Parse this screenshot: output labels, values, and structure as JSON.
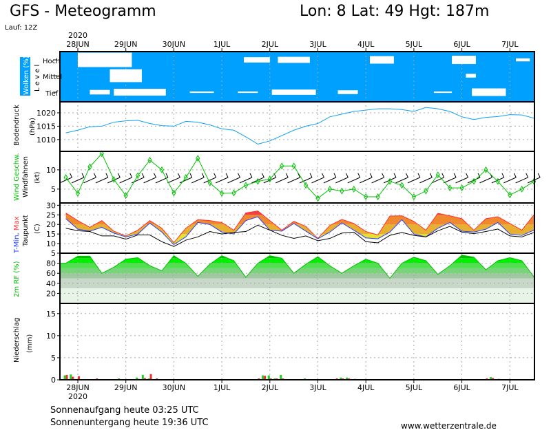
{
  "header": {
    "title": "GFS - Meteogramm",
    "location": "Lon: 8 Lat: 49 Hgt: 187m",
    "run": "Lauf: 12Z"
  },
  "footer": {
    "sunrise": "Sonnenaufgang heute 03:25 UTC",
    "sunset": "Sonnenuntergang heute 19:36 UTC",
    "website": "www.wetterzentrale.de"
  },
  "axis": {
    "year": "2020",
    "days": [
      {
        "label": "28JUN",
        "date": "2020-06-28"
      },
      {
        "label": "29JUN",
        "date": "2020-06-29"
      },
      {
        "label": "30JUN",
        "date": "2020-06-30"
      },
      {
        "label": "1JUL",
        "date": "2020-07-01"
      },
      {
        "label": "2JUL",
        "date": "2020-07-02"
      },
      {
        "label": "3JUL",
        "date": "2020-07-03"
      },
      {
        "label": "4JUL",
        "date": "2020-07-04"
      },
      {
        "label": "5JUL",
        "date": "2020-07-05"
      },
      {
        "label": "6JUL",
        "date": "2020-07-06"
      },
      {
        "label": "7JUL",
        "date": "2020-07-07"
      }
    ],
    "range": [
      "2020-06-27T15",
      "2020-07-07T12"
    ]
  },
  "colors": {
    "cloud_bg": "#00a0ff",
    "pressure": "#10a0f0",
    "wind": "#00c000",
    "tmin": "#2040ff",
    "tmax": "#ff3030",
    "dewpoint": "#000000",
    "rh": "#00c000",
    "precip_green": "#20d020",
    "precip_red": "#f03030"
  },
  "chart_data": [
    {
      "type": "area",
      "panel": "clouds",
      "ylabel": "Wolken (%)",
      "ylabel2": "L e v e l",
      "levels": [
        "Hoch",
        "Mittel",
        "Tief"
      ],
      "blobs": {
        "Hoch": [
          {
            "from": "2020-06-28T00",
            "to": "2020-06-29T03",
            "cover": 95
          },
          {
            "from": "2020-07-01T11",
            "to": "2020-07-02T00",
            "cover": 35
          },
          {
            "from": "2020-07-02T04",
            "to": "2020-07-02T20",
            "cover": 40
          },
          {
            "from": "2020-07-04T02",
            "to": "2020-07-04T14",
            "cover": 50
          },
          {
            "from": "2020-07-05T19",
            "to": "2020-07-06T07",
            "cover": 55
          },
          {
            "from": "2020-07-07T03",
            "to": "2020-07-07T10",
            "cover": 20
          }
        ],
        "Mittel": [
          {
            "from": "2020-06-28T16",
            "to": "2020-06-29T08",
            "cover": 85
          },
          {
            "from": "2020-07-06T02",
            "to": "2020-07-06T07",
            "cover": 25
          }
        ],
        "Tief": [
          {
            "from": "2020-06-28T06",
            "to": "2020-06-28T16",
            "cover": 30
          },
          {
            "from": "2020-06-28T18",
            "to": "2020-06-29T20",
            "cover": 45
          },
          {
            "from": "2020-06-30T08",
            "to": "2020-06-30T20",
            "cover": 10
          },
          {
            "from": "2020-07-01T08",
            "to": "2020-07-01T18",
            "cover": 10
          },
          {
            "from": "2020-07-02T01",
            "to": "2020-07-02T23",
            "cover": 35
          },
          {
            "from": "2020-07-03T10",
            "to": "2020-07-03T20",
            "cover": 25
          },
          {
            "from": "2020-07-05T10",
            "to": "2020-07-05T19",
            "cover": 10
          },
          {
            "from": "2020-07-06T05",
            "to": "2020-07-06T22",
            "cover": 50
          }
        ]
      }
    },
    {
      "type": "line",
      "panel": "pressure",
      "ylabel": "Bodendruck",
      "yunit": "(hPa)",
      "yticks": [
        1010,
        1015,
        1020
      ],
      "ylim": [
        1005.6,
        1024.1
      ],
      "grid": true,
      "x": [
        "2020-06-27T18",
        "2020-06-28T00",
        "2020-06-28T06",
        "2020-06-28T12",
        "2020-06-28T18",
        "2020-06-29T00",
        "2020-06-29T06",
        "2020-06-29T12",
        "2020-06-29T18",
        "2020-06-30T00",
        "2020-06-30T06",
        "2020-06-30T12",
        "2020-06-30T18",
        "2020-07-01T00",
        "2020-07-01T06",
        "2020-07-01T12",
        "2020-07-01T18",
        "2020-07-02T00",
        "2020-07-02T06",
        "2020-07-02T12",
        "2020-07-02T18",
        "2020-07-03T00",
        "2020-07-03T06",
        "2020-07-03T12",
        "2020-07-03T18",
        "2020-07-04T00",
        "2020-07-04T06",
        "2020-07-04T12",
        "2020-07-04T18",
        "2020-07-05T00",
        "2020-07-05T06",
        "2020-07-05T12",
        "2020-07-05T18",
        "2020-07-06T00",
        "2020-07-06T06",
        "2020-07-06T12",
        "2020-07-06T18",
        "2020-07-07T00",
        "2020-07-07T06",
        "2020-07-07T12"
      ],
      "values": [
        1012.5,
        1013.5,
        1014.8,
        1015.0,
        1016.5,
        1017.0,
        1017.2,
        1016.0,
        1015.2,
        1015.0,
        1016.8,
        1016.5,
        1015.5,
        1014.0,
        1013.5,
        1011.0,
        1008.3,
        1009.5,
        1011.5,
        1013.5,
        1015.0,
        1016.0,
        1018.5,
        1019.5,
        1020.5,
        1021.0,
        1021.5,
        1021.5,
        1021.2,
        1020.5,
        1022.0,
        1021.5,
        1020.5,
        1018.5,
        1017.5,
        1018.3,
        1018.6,
        1019.3,
        1019.2,
        1018.0
      ]
    },
    {
      "type": "line",
      "panel": "wind",
      "ylabel": "Wind Geschw.",
      "ylabel2": "Windfahnen",
      "yunit": "(kt)",
      "yticks": [
        5,
        10
      ],
      "ylim": [
        1.4,
        14.8
      ],
      "grid": true,
      "values": [
        8,
        3.9,
        10.8,
        14.2,
        7.5,
        3.3,
        8.5,
        12.5,
        10,
        4,
        8,
        13,
        6.6,
        3.9,
        4,
        6,
        7,
        7.6,
        11,
        11,
        6,
        2.6,
        5,
        4.5,
        5,
        3,
        3,
        7,
        6,
        3,
        4.5,
        8.7,
        5.3,
        5.3,
        7,
        10,
        7,
        3.5,
        5,
        7
      ]
    },
    {
      "type": "line",
      "panel": "temperature",
      "ylabel": "T-Min, Max",
      "ylabel2": "Taupunkt",
      "yunit": "(C)",
      "yticks": [
        5,
        10,
        15,
        20,
        25,
        30
      ],
      "ylim": [
        5,
        31.2
      ],
      "grid": true,
      "series": [
        {
          "name": "Max",
          "values": [
            26,
            22,
            18.5,
            22,
            16.5,
            14,
            17,
            22,
            18,
            10.5,
            18,
            22.5,
            22,
            21,
            17,
            26,
            27,
            22,
            17,
            21.6,
            19,
            12.7,
            19.5,
            22.6,
            20.5,
            16.3,
            14.5,
            24.4,
            24.5,
            21.6,
            17,
            25.8,
            24.5,
            23,
            17,
            23,
            24,
            20.5,
            17,
            25
          ]
        },
        {
          "name": "T-Min",
          "values": [
            23,
            17.5,
            16.5,
            18.5,
            15.5,
            13.5,
            15,
            20.7,
            16,
            9.5,
            13.5,
            21,
            20,
            16,
            15,
            22,
            24,
            17,
            16.5,
            20.5,
            16.5,
            12.5,
            16,
            20.8,
            17,
            13,
            12.5,
            16,
            22.5,
            15,
            13.5,
            18,
            21,
            16.5,
            16,
            17.5,
            21,
            15,
            14.3,
            17
          ]
        },
        {
          "name": "Taupunkt",
          "values": [
            18,
            16.7,
            16.3,
            14,
            14,
            12.3,
            14.5,
            14.5,
            11,
            8.5,
            11.8,
            13.5,
            16.3,
            15,
            15.8,
            16.3,
            19.6,
            17,
            14.3,
            12.7,
            14,
            11.5,
            12.7,
            15.5,
            16,
            11,
            10.4,
            14.3,
            15.8,
            14.3,
            13.5,
            16.7,
            19,
            16,
            15.2,
            16.3,
            17.6,
            14,
            13.5,
            15.8
          ]
        }
      ]
    },
    {
      "type": "area",
      "panel": "humidity",
      "ylabel": "2m RF (%)",
      "yticks": [
        20,
        40,
        60,
        80
      ],
      "ylim": [
        0,
        100
      ],
      "grid": true,
      "values": [
        80,
        94,
        94,
        60,
        72,
        88,
        91,
        75,
        65,
        95,
        80,
        54,
        78,
        95,
        85,
        52,
        80,
        95,
        90,
        60,
        78,
        93,
        75,
        60,
        75,
        88,
        80,
        50,
        80,
        92,
        85,
        58,
        75,
        96,
        92,
        67,
        85,
        91,
        85,
        53
      ]
    },
    {
      "type": "bar",
      "panel": "precipitation",
      "ylabel": "Niederschlag",
      "yunit": "(mm)",
      "yticks": [
        0,
        5,
        10,
        15
      ],
      "ylim": [
        0,
        17.3
      ],
      "grid": true,
      "bars": [
        {
          "x": "2020-06-27T18",
          "green": 1.0,
          "red": 1.1
        },
        {
          "x": "2020-06-27T21",
          "green": 1.2,
          "red": 0.7
        },
        {
          "x": "2020-06-28T00",
          "green": 0.1,
          "red": 0.8
        },
        {
          "x": "2020-06-28T09",
          "green": 0.0,
          "red": 0.3
        },
        {
          "x": "2020-06-28T21",
          "green": 0.3,
          "red": 0.1
        },
        {
          "x": "2020-06-29T06",
          "green": 0.5,
          "red": 0.2
        },
        {
          "x": "2020-06-29T09",
          "green": 1.1,
          "red": 0.4
        },
        {
          "x": "2020-06-29T12",
          "green": 0.3,
          "red": 1.3
        },
        {
          "x": "2020-06-29T15",
          "green": 0.0,
          "red": 0.3
        },
        {
          "x": "2020-07-01T18",
          "green": 0.0,
          "red": 0.3
        },
        {
          "x": "2020-07-01T21",
          "green": 1.0,
          "red": 0.9
        },
        {
          "x": "2020-07-02T00",
          "green": 1.0,
          "red": 0.3
        },
        {
          "x": "2020-07-02T03",
          "green": 0.3,
          "red": 0.3
        },
        {
          "x": "2020-07-02T06",
          "green": 1.1,
          "red": 0.3
        },
        {
          "x": "2020-07-02T09",
          "green": 0.0,
          "red": 0.1
        },
        {
          "x": "2020-07-02T18",
          "green": 0.3,
          "red": 0.1
        },
        {
          "x": "2020-07-03T09",
          "green": 0.0,
          "red": 0.3
        },
        {
          "x": "2020-07-03T12",
          "green": 0.5,
          "red": 0.3
        },
        {
          "x": "2020-07-03T15",
          "green": 0.5,
          "red": 0.3
        },
        {
          "x": "2020-07-03T18",
          "green": 0.0,
          "red": 0.2
        },
        {
          "x": "2020-07-06T12",
          "green": 0.0,
          "red": 0.3
        },
        {
          "x": "2020-07-06T15",
          "green": 0.6,
          "red": 0.4
        },
        {
          "x": "2020-07-06T18",
          "green": 0.0,
          "red": 0.2
        }
      ]
    }
  ]
}
